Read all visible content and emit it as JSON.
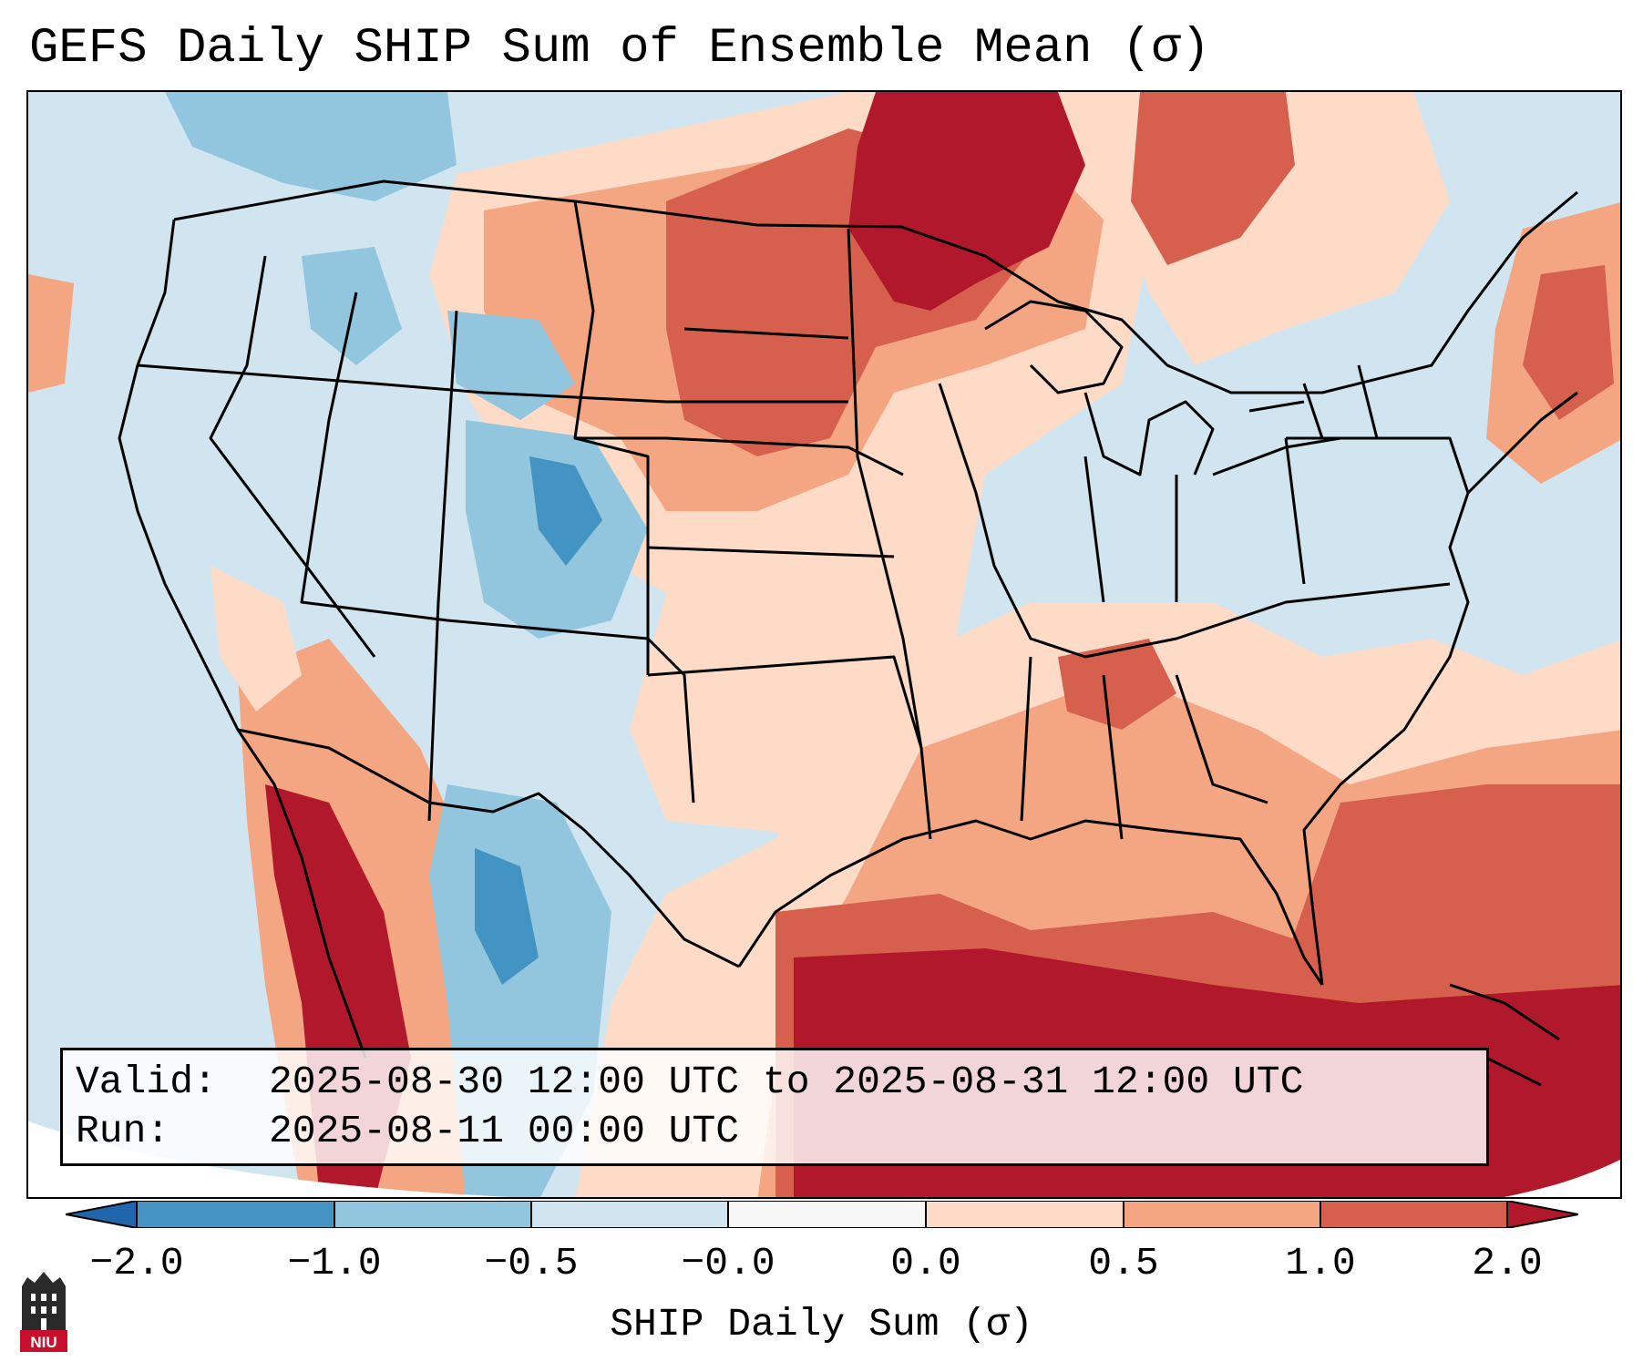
{
  "title": "GEFS Daily SHIP Sum of Ensemble Mean (σ)",
  "info": {
    "valid_label": "Valid:",
    "valid_value": "2025-08-30 12:00 UTC to 2025-08-31 12:00 UTC",
    "run_label": "Run:",
    "run_value": "2025-08-11 00:00 UTC"
  },
  "colorbar": {
    "label": "SHIP Daily Sum (σ)",
    "ticks": [
      "−2.0",
      "−1.0",
      "−0.5",
      "−0.0",
      "0.0",
      "0.5",
      "1.0",
      "2.0"
    ],
    "bins": [
      {
        "range": "< -2.0",
        "color": "#2166ac"
      },
      {
        "range": "-2.0 to -1.0",
        "color": "#4393c3"
      },
      {
        "range": "-1.0 to -0.5",
        "color": "#92c5de"
      },
      {
        "range": "-0.5 to -0.0",
        "color": "#d1e5f0"
      },
      {
        "range": "-0.0 to 0.0",
        "color": "#f7f7f7"
      },
      {
        "range": "0.0 to 0.5",
        "color": "#fddbc7"
      },
      {
        "range": "0.5 to 1.0",
        "color": "#f4a582"
      },
      {
        "range": "1.0 to 2.0",
        "color": "#d6604d"
      },
      {
        "range": "> 2.0",
        "color": "#b2182b"
      }
    ]
  },
  "logo": {
    "text": "NIU",
    "color": "#c8102e"
  }
}
